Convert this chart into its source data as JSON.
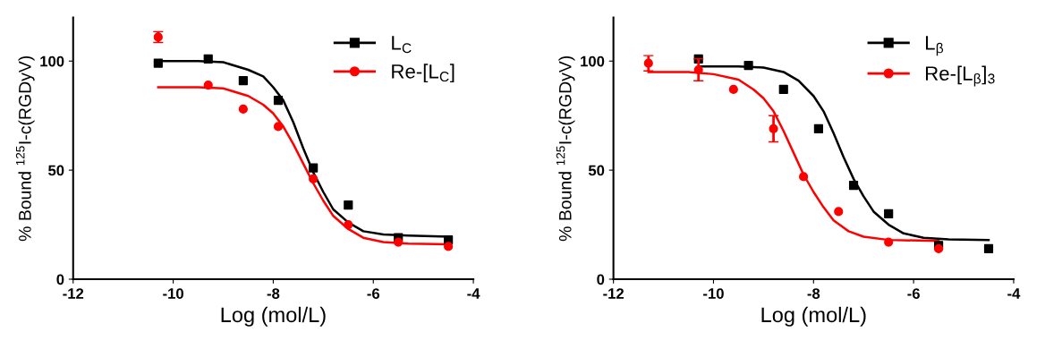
{
  "chart_data": [
    {
      "type": "scatter",
      "xlabel": "Log (mol/L)",
      "ylabel": "% Bound $^{125}$I-c(RGDyV)",
      "xlim": [
        -12,
        -4
      ],
      "xticks": [
        -12,
        -10,
        -8,
        -6,
        -4
      ],
      "ylim": [
        0,
        120
      ],
      "yticks": [
        0,
        50,
        100
      ],
      "grid": false,
      "legend": "top right",
      "series": [
        {
          "name": "L$_{C}$",
          "color": "#000000",
          "marker": "square",
          "x": [
            -10.3,
            -9.3,
            -8.6,
            -7.9,
            -7.2,
            -6.5,
            -5.5,
            -4.5
          ],
          "values": [
            99,
            101,
            91,
            82,
            51,
            34,
            19,
            18
          ]
        },
        {
          "name": "Re-[L$_{C}$]",
          "color": "#ff0000",
          "marker": "circle",
          "x": [
            -10.3,
            -9.3,
            -8.6,
            -7.9,
            -7.2,
            -6.5,
            -5.5,
            -4.5
          ],
          "values": [
            111,
            89,
            78,
            70,
            46,
            25,
            17,
            15
          ],
          "errors": [
            2.5,
            null,
            null,
            null,
            null,
            null,
            null,
            null
          ]
        },
        {
          "type": "line",
          "color": "#000000",
          "x": [
            -10.3,
            -9.5,
            -9,
            -8.5,
            -8.2,
            -8,
            -7.8,
            -7.6,
            -7.4,
            -7.2,
            -7,
            -6.8,
            -6.5,
            -6.2,
            -5.8,
            -5.3,
            -4.5
          ],
          "values": [
            100,
            100,
            99.5,
            96,
            93,
            88,
            82,
            72,
            60,
            49,
            40,
            32,
            26,
            22,
            20.5,
            20,
            19.5
          ]
        },
        {
          "type": "line",
          "color": "#ff0000",
          "x": [
            -10.3,
            -9.5,
            -9,
            -8.5,
            -8.2,
            -8,
            -7.8,
            -7.6,
            -7.4,
            -7.2,
            -7,
            -6.8,
            -6.5,
            -6.2,
            -5.8,
            -5.3,
            -4.5
          ],
          "values": [
            88,
            88,
            87.5,
            84,
            80,
            76,
            70,
            62,
            53,
            44,
            36,
            29,
            23,
            19,
            17,
            16.3,
            16
          ]
        }
      ]
    },
    {
      "type": "scatter",
      "xlabel": "Log (mol/L)",
      "ylabel": "% Bound $^{125}$I-c(RGDyV)",
      "xlim": [
        -12,
        -4
      ],
      "xticks": [
        -12,
        -10,
        -8,
        -6,
        -4
      ],
      "ylim": [
        0,
        120
      ],
      "yticks": [
        0,
        50,
        100
      ],
      "grid": false,
      "legend": "top right",
      "series": [
        {
          "name": "L$_{β}$",
          "color": "#000000",
          "marker": "square",
          "x": [
            -10.3,
            -9.3,
            -8.6,
            -7.9,
            -7.2,
            -6.5,
            -5.5,
            -4.5
          ],
          "values": [
            101,
            98,
            87,
            69,
            43,
            30,
            15.5,
            14
          ]
        },
        {
          "name": "Re-[L$_{β}$]$_{3}$",
          "color": "#ff0000",
          "marker": "circle",
          "x": [
            -11.3,
            -10.3,
            -9.6,
            -8.8,
            -8.2,
            -7.5,
            -6.5,
            -5.5
          ],
          "values": [
            99,
            96,
            87,
            69,
            47,
            31,
            17,
            14
          ],
          "errors": [
            3.5,
            5,
            null,
            6,
            null,
            null,
            null,
            null
          ]
        },
        {
          "type": "line",
          "color": "#000000",
          "x": [
            -10.3,
            -9.5,
            -9,
            -8.6,
            -8.3,
            -8,
            -7.8,
            -7.6,
            -7.4,
            -7.2,
            -7,
            -6.8,
            -6.5,
            -6.2,
            -5.8,
            -5.3,
            -4.5
          ],
          "values": [
            97.5,
            97.5,
            97,
            95,
            91,
            84,
            77,
            67,
            56,
            46,
            38,
            31,
            25,
            21,
            19,
            18.3,
            18
          ]
        },
        {
          "type": "line",
          "color": "#ff0000",
          "x": [
            -11.3,
            -10.5,
            -10,
            -9.5,
            -9.2,
            -9,
            -8.8,
            -8.6,
            -8.4,
            -8.2,
            -8,
            -7.8,
            -7.6,
            -7.3,
            -7,
            -6.5,
            -5.5
          ],
          "values": [
            95,
            95,
            94,
            91.5,
            87,
            83,
            77,
            68,
            58,
            48,
            40,
            33,
            27,
            22,
            19.5,
            18,
            17.5
          ]
        }
      ]
    }
  ]
}
